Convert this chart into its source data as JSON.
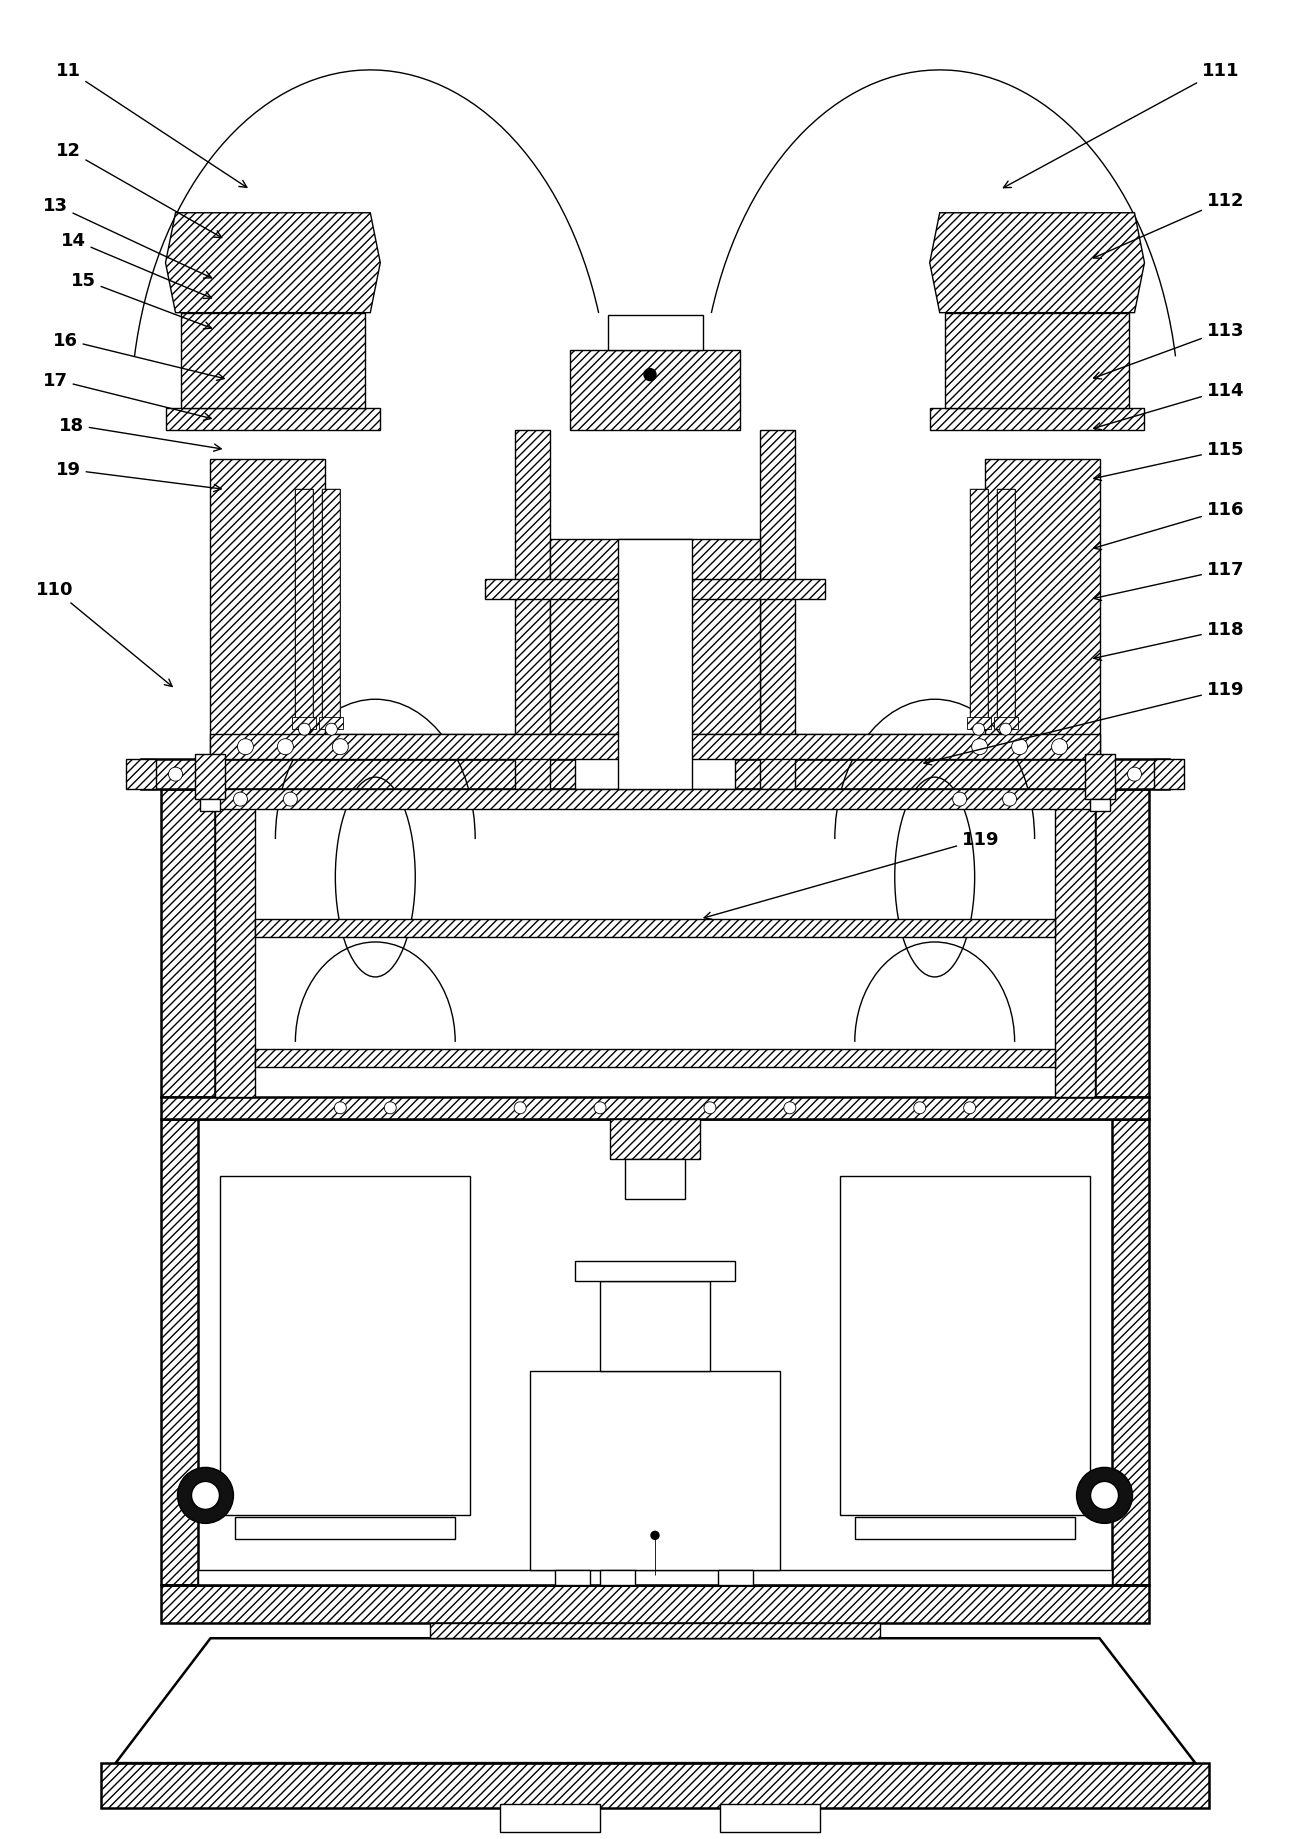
{
  "background_color": "#ffffff",
  "line_color": "#000000",
  "labels_left": [
    "11",
    "12",
    "13",
    "14",
    "15",
    "16",
    "17",
    "18",
    "19",
    "110"
  ],
  "labels_right": [
    "111",
    "112",
    "113",
    "114",
    "115",
    "116",
    "117",
    "118",
    "119"
  ],
  "label_fs": 13,
  "figsize": [
    13.11,
    18.4
  ],
  "dpi": 100,
  "lw_thin": 0.6,
  "lw_med": 1.0,
  "lw_thick": 1.8,
  "lw_border": 2.2
}
